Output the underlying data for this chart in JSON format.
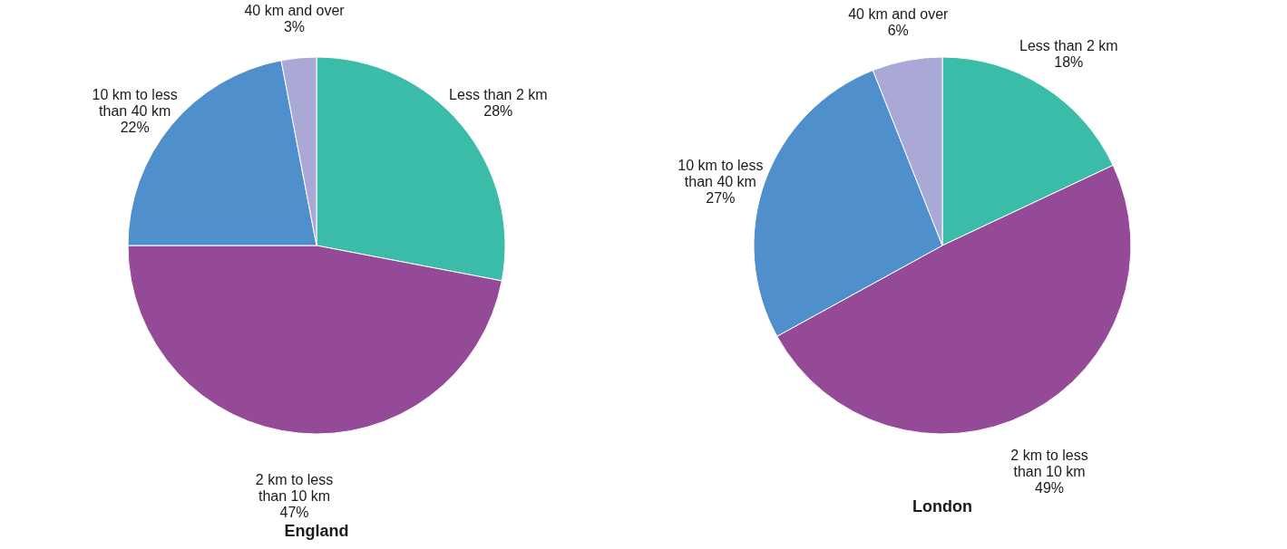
{
  "chart_data": [
    {
      "type": "pie",
      "title": "England",
      "categories": [
        "Less than 2 km",
        "2 km to less than 10 km",
        "10 km to less than 40 km",
        "40 km and over"
      ],
      "values": [
        28,
        47,
        22,
        3
      ],
      "colors": [
        "#3bbca8",
        "#954a97",
        "#4e8fcc",
        "#aaa8d6"
      ],
      "value_labels": [
        "28%",
        "47%",
        "22%",
        "3%"
      ]
    },
    {
      "type": "pie",
      "title": "London",
      "categories": [
        "Less than 2 km",
        "2 km to less than 10 km",
        "10 km to less than 40 km",
        "40 km and over"
      ],
      "values": [
        18,
        49,
        27,
        6
      ],
      "colors": [
        "#3bbca8",
        "#954a97",
        "#4e8fcc",
        "#aaa8d6"
      ],
      "value_labels": [
        "18%",
        "49%",
        "27%",
        "6%"
      ]
    }
  ]
}
